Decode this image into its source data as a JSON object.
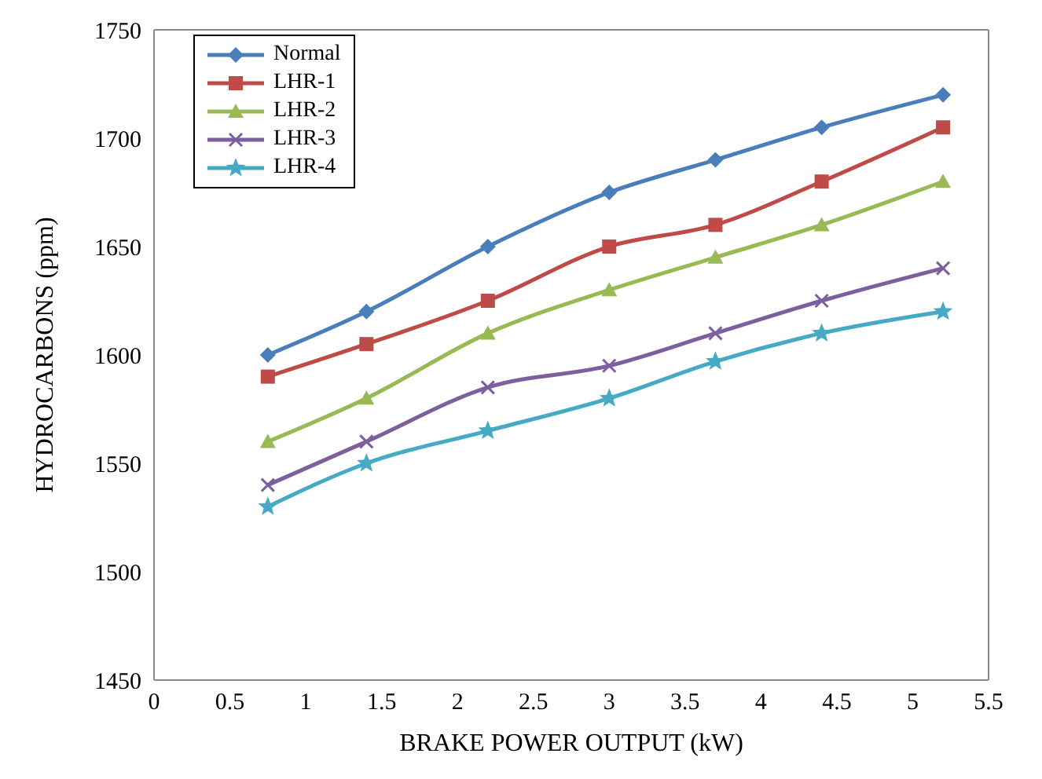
{
  "chart_data": {
    "type": "line",
    "xlabel": "BRAKE POWER OUTPUT (kW)",
    "ylabel": "HYDROCARBONS (ppm)",
    "x": [
      0.75,
      1.4,
      2.2,
      3,
      3.7,
      4.4,
      5.2
    ],
    "series": [
      {
        "name": "Normal",
        "color": "#4a7ebb",
        "marker": "diamond",
        "values": [
          1600,
          1620,
          1650,
          1675,
          1690,
          1705,
          1720
        ]
      },
      {
        "name": "LHR-1",
        "color": "#be4b48",
        "marker": "square",
        "values": [
          1590,
          1605,
          1625,
          1650,
          1660,
          1680,
          1705
        ]
      },
      {
        "name": "LHR-2",
        "color": "#98b954",
        "marker": "triangle",
        "values": [
          1560,
          1580,
          1610,
          1630,
          1645,
          1660,
          1680
        ]
      },
      {
        "name": "LHR-3",
        "color": "#7d5fa0",
        "marker": "cross",
        "values": [
          1540,
          1560,
          1585,
          1595,
          1610,
          1625,
          1640
        ]
      },
      {
        "name": "LHR-4",
        "color": "#46aac5",
        "marker": "star",
        "values": [
          1530,
          1550,
          1565,
          1580,
          1597,
          1610,
          1620
        ]
      }
    ],
    "xlim": [
      0,
      5.5
    ],
    "xticks": [
      0,
      0.5,
      1,
      1.5,
      2,
      2.5,
      3,
      3.5,
      4,
      4.5,
      5,
      5.5
    ],
    "ylim": [
      1450,
      1750
    ],
    "yticks": [
      1450,
      1500,
      1550,
      1600,
      1650,
      1700,
      1750
    ],
    "grid": false,
    "legend": "top left",
    "line_style": "solid"
  }
}
